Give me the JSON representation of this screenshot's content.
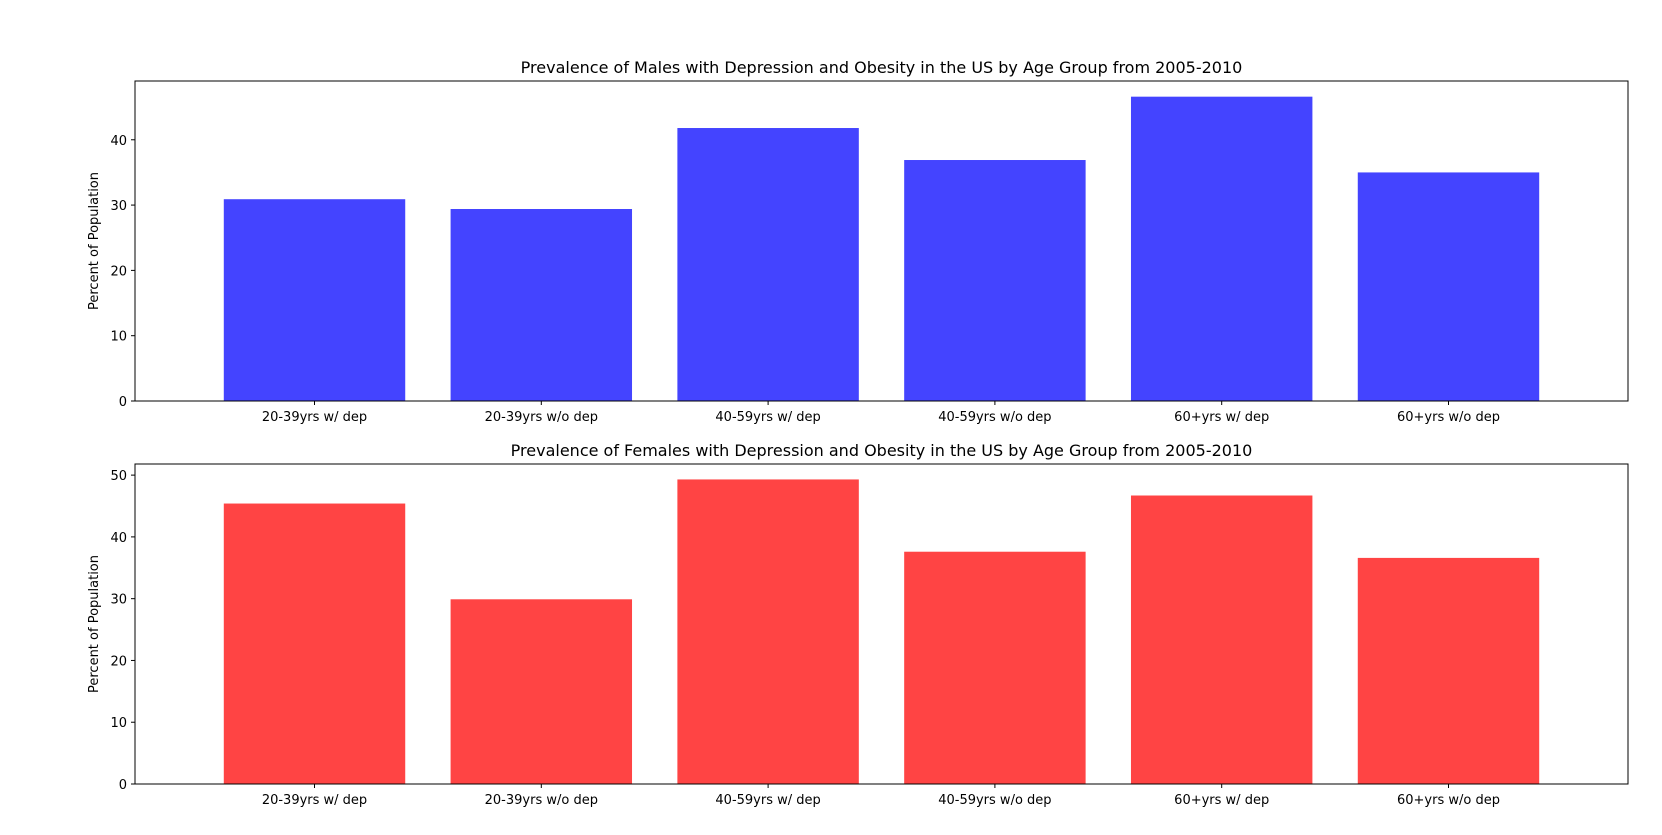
{
  "chart_data": [
    {
      "type": "bar",
      "title": "Prevalence of Males with Depression and Obesity in the US by Age Group from 2005-2010",
      "xlabel": "",
      "ylabel": "Percent of Population",
      "categories": [
        "20-39yrs w/ dep",
        "20-39yrs w/o dep",
        "40-59yrs w/ dep",
        "40-59yrs w/o dep",
        "60+yrs w/ dep",
        "60+yrs w/o dep"
      ],
      "values": [
        30.9,
        29.4,
        41.8,
        36.9,
        46.6,
        35.0
      ],
      "ylim": [
        0,
        49
      ],
      "yticks": [
        0,
        10,
        20,
        30,
        40
      ],
      "color": "#4444ff",
      "grid": false,
      "legend": "none"
    },
    {
      "type": "bar",
      "title": "Prevalence of Females with Depression and Obesity in the US by Age Group from 2005-2010",
      "xlabel": "",
      "ylabel": "Percent of Population",
      "categories": [
        "20-39yrs w/ dep",
        "20-39yrs w/o dep",
        "40-59yrs w/ dep",
        "40-59yrs w/o dep",
        "60+yrs w/ dep",
        "60+yrs w/o dep"
      ],
      "values": [
        45.4,
        29.9,
        49.3,
        37.6,
        46.7,
        36.6
      ],
      "ylim": [
        0,
        51.8
      ],
      "yticks": [
        0,
        10,
        20,
        30,
        40,
        50
      ],
      "color": "#ff4444",
      "grid": false,
      "legend": "none"
    }
  ]
}
